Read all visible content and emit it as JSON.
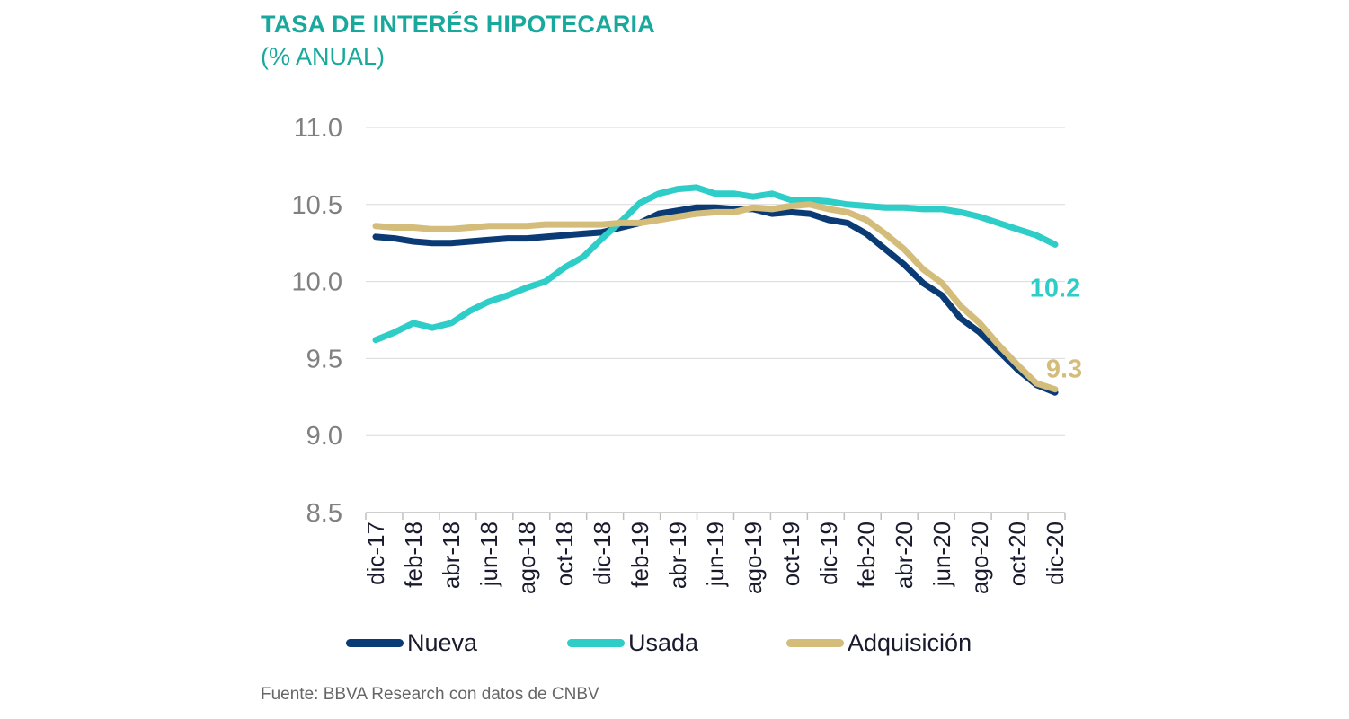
{
  "header": {
    "title": "TASA DE INTERÉS HIPOTECARIA",
    "subtitle": "(% ANUAL)"
  },
  "source": "Fuente: BBVA Research con datos de CNBV",
  "colors": {
    "title": "#18a99c",
    "nueva": "#0b3b75",
    "usada": "#2ecdc8",
    "adquisicion": "#d4bd7a",
    "axis_text": "#808080",
    "grid": "#d9d9d9"
  },
  "chart_data": {
    "type": "line",
    "title": "TASA DE INTERÉS HIPOTECARIA",
    "subtitle": "(% ANUAL)",
    "ylim": [
      8.5,
      11.0
    ],
    "yticks": [
      "11.0",
      "10.5",
      "10.0",
      "9.5",
      "9.0",
      "8.5"
    ],
    "grid": true,
    "legend_position": "bottom",
    "x": [
      "dic-17",
      "ene-18",
      "feb-18",
      "mar-18",
      "abr-18",
      "may-18",
      "jun-18",
      "jul-18",
      "ago-18",
      "sep-18",
      "oct-18",
      "nov-18",
      "dic-18",
      "ene-19",
      "feb-19",
      "mar-19",
      "abr-19",
      "may-19",
      "jun-19",
      "jul-19",
      "ago-19",
      "sep-19",
      "oct-19",
      "nov-19",
      "dic-19",
      "ene-20",
      "feb-20",
      "mar-20",
      "abr-20",
      "may-20",
      "jun-20",
      "jul-20",
      "ago-20",
      "sep-20",
      "oct-20",
      "nov-20",
      "dic-20"
    ],
    "xtick_labels": [
      "dic-17",
      "feb-18",
      "abr-18",
      "jun-18",
      "ago-18",
      "oct-18",
      "dic-18",
      "feb-19",
      "abr-19",
      "jun-19",
      "ago-19",
      "oct-19",
      "dic-19",
      "feb-20",
      "abr-20",
      "jun-20",
      "ago-20",
      "oct-20",
      "dic-20"
    ],
    "series": [
      {
        "name": "Nueva",
        "key": "nueva",
        "values": [
          10.29,
          10.28,
          10.26,
          10.25,
          10.25,
          10.26,
          10.27,
          10.28,
          10.28,
          10.29,
          10.3,
          10.31,
          10.32,
          10.35,
          10.38,
          10.44,
          10.46,
          10.48,
          10.48,
          10.47,
          10.47,
          10.44,
          10.45,
          10.44,
          10.4,
          10.38,
          10.31,
          10.21,
          10.11,
          9.99,
          9.91,
          9.76,
          9.67,
          9.55,
          9.43,
          9.33,
          9.28
        ]
      },
      {
        "name": "Usada",
        "key": "usada",
        "values": [
          9.62,
          9.67,
          9.73,
          9.7,
          9.73,
          9.81,
          9.87,
          9.91,
          9.96,
          10.0,
          10.09,
          10.16,
          10.28,
          10.39,
          10.51,
          10.57,
          10.6,
          10.61,
          10.57,
          10.57,
          10.55,
          10.57,
          10.53,
          10.53,
          10.52,
          10.5,
          10.49,
          10.48,
          10.48,
          10.47,
          10.47,
          10.45,
          10.42,
          10.38,
          10.34,
          10.3,
          10.24
        ]
      },
      {
        "name": "Adquisición",
        "key": "adquisicion",
        "values": [
          10.36,
          10.35,
          10.35,
          10.34,
          10.34,
          10.35,
          10.36,
          10.36,
          10.36,
          10.37,
          10.37,
          10.37,
          10.37,
          10.38,
          10.38,
          10.4,
          10.42,
          10.44,
          10.45,
          10.45,
          10.48,
          10.47,
          10.49,
          10.5,
          10.47,
          10.45,
          10.4,
          10.31,
          10.21,
          10.08,
          9.99,
          9.84,
          9.73,
          9.59,
          9.46,
          9.34,
          9.3
        ]
      }
    ],
    "end_labels": [
      {
        "series": "usada",
        "text": "10.2"
      },
      {
        "series": "adquisicion",
        "text": "9.3"
      }
    ]
  }
}
